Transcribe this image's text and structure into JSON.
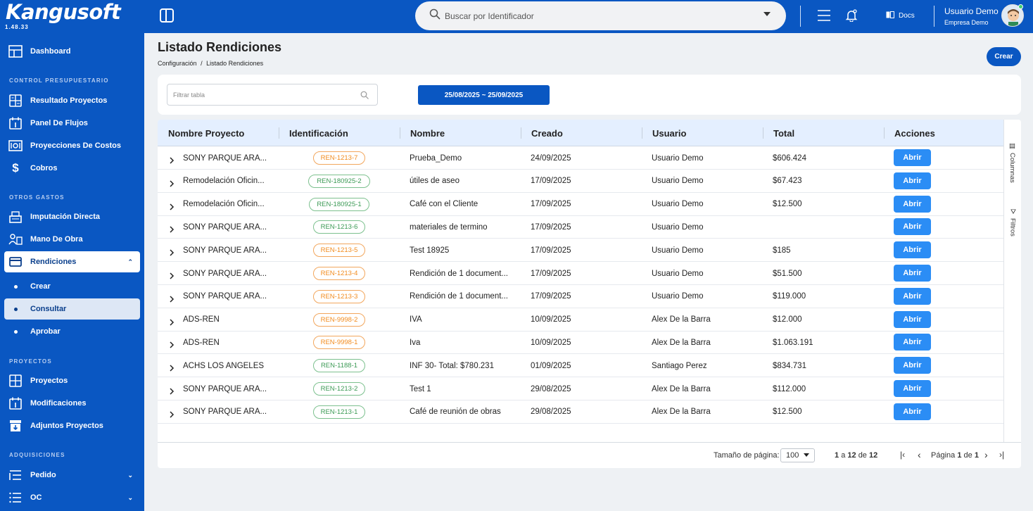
{
  "app": {
    "brand": "Kangusoft",
    "version": "1.48.33"
  },
  "sidebar": {
    "dashboard": "Dashboard",
    "section_presupuestario": "CONTROL PRESUPUESTARIO",
    "resultado_proyectos": "Resultado Proyectos",
    "panel_flujos": "Panel De Flujos",
    "proyecciones_costos": "Proyecciones De Costos",
    "cobros": "Cobros",
    "section_otros": "OTROS GASTOS",
    "imputacion_directa": "Imputación Directa",
    "mano_obra": "Mano De Obra",
    "rendiciones": "Rendiciones",
    "crear": "Crear",
    "consultar": "Consultar",
    "aprobar": "Aprobar",
    "section_proyectos": "PROYECTOS",
    "proyectos": "Proyectos",
    "modificaciones": "Modificaciones",
    "adjuntos_proyectos": "Adjuntos Proyectos",
    "section_adquisiciones": "ADQUISICIONES",
    "pedido": "Pedido",
    "oc": "OC"
  },
  "topbar": {
    "search_placeholder": "Buscar por Identificador",
    "docs": "Docs",
    "user_name": "Usuario Demo",
    "user_company": "Empresa Demo"
  },
  "page": {
    "title": "Listado Rendiciones",
    "breadcrumb_parent": "Configuración",
    "breadcrumb_sep": "/",
    "breadcrumb_current": "Listado Rendiciones",
    "create_button": "Crear",
    "filter_placeholder": "Filtrar tabla",
    "date_range": "25/08/2025 ~ 25/09/2025"
  },
  "table": {
    "columns": [
      "Nombre Proyecto",
      "Identificación",
      "Nombre",
      "Creado",
      "Usuario",
      "Total",
      "Acciones"
    ],
    "action_label": "Abrir",
    "rows": [
      {
        "proyecto": "SONY PARQUE ARA...",
        "id": "REN-1213-7",
        "tag": "orange",
        "nombre": "Prueba_Demo",
        "creado": "24/09/2025",
        "usuario": "Usuario Demo",
        "total": "$606.424"
      },
      {
        "proyecto": "Remodelación Oficin...",
        "id": "REN-180925-2",
        "tag": "green",
        "nombre": "útiles de aseo",
        "creado": "17/09/2025",
        "usuario": "Usuario Demo",
        "total": "$67.423"
      },
      {
        "proyecto": "Remodelación Oficin...",
        "id": "REN-180925-1",
        "tag": "green",
        "nombre": "Café con el Cliente",
        "creado": "17/09/2025",
        "usuario": "Usuario Demo",
        "total": "$12.500"
      },
      {
        "proyecto": "SONY PARQUE ARA...",
        "id": "REN-1213-6",
        "tag": "green",
        "nombre": "materiales de termino",
        "creado": "17/09/2025",
        "usuario": "Usuario Demo",
        "total": ""
      },
      {
        "proyecto": "SONY PARQUE ARA...",
        "id": "REN-1213-5",
        "tag": "orange",
        "nombre": "Test 18925",
        "creado": "17/09/2025",
        "usuario": "Usuario Demo",
        "total": "$185"
      },
      {
        "proyecto": "SONY PARQUE ARA...",
        "id": "REN-1213-4",
        "tag": "orange",
        "nombre": "Rendición de 1 document...",
        "creado": "17/09/2025",
        "usuario": "Usuario Demo",
        "total": "$51.500"
      },
      {
        "proyecto": "SONY PARQUE ARA...",
        "id": "REN-1213-3",
        "tag": "orange",
        "nombre": "Rendición de 1 document...",
        "creado": "17/09/2025",
        "usuario": "Usuario Demo",
        "total": "$119.000"
      },
      {
        "proyecto": "ADS-REN",
        "id": "REN-9998-2",
        "tag": "orange",
        "nombre": "IVA",
        "creado": "10/09/2025",
        "usuario": "Alex De la Barra",
        "total": "$12.000"
      },
      {
        "proyecto": "ADS-REN",
        "id": "REN-9998-1",
        "tag": "orange",
        "nombre": "Iva",
        "creado": "10/09/2025",
        "usuario": "Alex De la Barra",
        "total": "$1.063.191"
      },
      {
        "proyecto": "ACHS LOS ANGELES",
        "id": "REN-1188-1",
        "tag": "green",
        "nombre": "INF 30- Total: $780.231",
        "creado": "01/09/2025",
        "usuario": "Santiago Perez",
        "total": "$834.731"
      },
      {
        "proyecto": "SONY PARQUE ARA...",
        "id": "REN-1213-2",
        "tag": "green",
        "nombre": "Test 1",
        "creado": "29/08/2025",
        "usuario": "Alex De la Barra",
        "total": "$112.000"
      },
      {
        "proyecto": "SONY PARQUE ARA...",
        "id": "REN-1213-1",
        "tag": "green",
        "nombre": "Café de reunión de obras",
        "creado": "29/08/2025",
        "usuario": "Alex De la Barra",
        "total": "$12.500"
      }
    ],
    "side_columns": "Columnas",
    "side_filters": "Filtros"
  },
  "footer": {
    "page_size_label": "Tamaño de página:",
    "page_size": "100",
    "range_from": "1",
    "range_a": "a",
    "range_to": "12",
    "range_de": "de",
    "range_total": "12",
    "pagina_label": "Página",
    "current_page": "1",
    "page_de": "de",
    "total_pages": "1"
  },
  "colors": {
    "brand_blue": "#0a57c2",
    "button_blue": "#2b8df5",
    "tag_orange": "#f28c1f",
    "tag_green": "#3c9a55"
  }
}
